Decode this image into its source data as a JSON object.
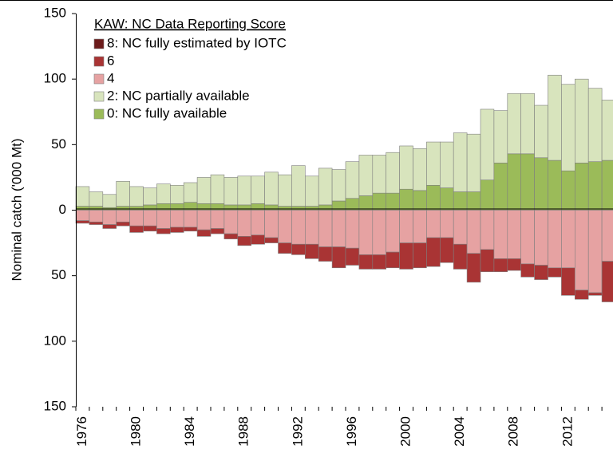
{
  "chart_data": {
    "type": "bar",
    "stacked": true,
    "y_label": "Nominal catch ('000 Mt)",
    "legend_title": "KAW: NC Data Reporting Score",
    "legend": "upper left",
    "categories": [
      "1976",
      null,
      null,
      null,
      "1980",
      null,
      null,
      null,
      "1984",
      null,
      null,
      null,
      "1988",
      null,
      null,
      null,
      "1992",
      null,
      null,
      null,
      "1996",
      null,
      null,
      null,
      "2000",
      null,
      null,
      null,
      "2004",
      null,
      null,
      null,
      "2008",
      null,
      null,
      null,
      "2012",
      null,
      null,
      null
    ],
    "series": [
      {
        "name": "8: NC fully estimated by IOTC",
        "color": "#6b1b1b",
        "values": [
          0,
          0,
          0,
          0,
          0,
          0,
          0,
          0,
          0,
          0,
          0,
          0,
          0,
          0,
          0,
          0,
          0,
          0,
          0,
          0,
          0,
          0,
          0,
          0,
          0,
          0,
          0,
          0,
          0,
          0,
          0,
          0,
          0,
          0,
          0,
          0,
          0,
          0,
          0,
          0
        ]
      },
      {
        "name": "6",
        "color": "#a93434",
        "values": [
          -2,
          -2,
          -3,
          -3,
          -5,
          -4,
          -4,
          -4,
          -3,
          -5,
          -4,
          -4,
          -7,
          -7,
          -4,
          -8,
          -8,
          -11,
          -11,
          -16,
          -13,
          -11,
          -11,
          -12,
          -20,
          -19,
          -22,
          -19,
          -19,
          -22,
          -17,
          -10,
          -9,
          -10,
          -11,
          -7,
          -21,
          -7,
          -2,
          -31
        ]
      },
      {
        "name": "4",
        "color": "#e6a2a2",
        "values": [
          -8,
          -9,
          -11,
          -9,
          -12,
          -12,
          -14,
          -13,
          -13,
          -15,
          -14,
          -18,
          -20,
          -19,
          -21,
          -25,
          -26,
          -26,
          -28,
          -28,
          -29,
          -34,
          -34,
          -32,
          -25,
          -25,
          -21,
          -21,
          -26,
          -33,
          -30,
          -37,
          -37,
          -41,
          -42,
          -44,
          -44,
          -61,
          -63,
          -39
        ]
      },
      {
        "name": "2: NC partially available",
        "color": "#d8e4bd",
        "values": [
          15,
          11,
          10,
          19,
          15,
          13,
          15,
          14,
          15,
          20,
          22,
          21,
          22,
          21,
          25,
          24,
          31,
          23,
          28,
          24,
          28,
          31,
          29,
          31,
          33,
          32,
          33,
          35,
          45,
          44,
          54,
          40,
          46,
          46,
          40,
          65,
          66,
          64,
          56,
          46
        ]
      },
      {
        "name": "0: NC fully available",
        "color": "#9bbb59",
        "values": [
          3,
          3,
          2,
          3,
          3,
          4,
          5,
          5,
          6,
          5,
          5,
          4,
          4,
          5,
          4,
          3,
          3,
          3,
          4,
          7,
          9,
          11,
          13,
          13,
          16,
          15,
          19,
          17,
          14,
          14,
          23,
          36,
          43,
          43,
          40,
          38,
          30,
          36,
          37,
          38
        ]
      }
    ],
    "ylim": [
      -150,
      150
    ],
    "yticks": [
      150,
      100,
      50,
      0,
      {
        "value": -50,
        "label": "50"
      },
      {
        "value": -100,
        "label": "100"
      },
      {
        "value": -150,
        "label": "150"
      }
    ],
    "negative_tick_label_color": "#ff0000",
    "grid": false
  }
}
